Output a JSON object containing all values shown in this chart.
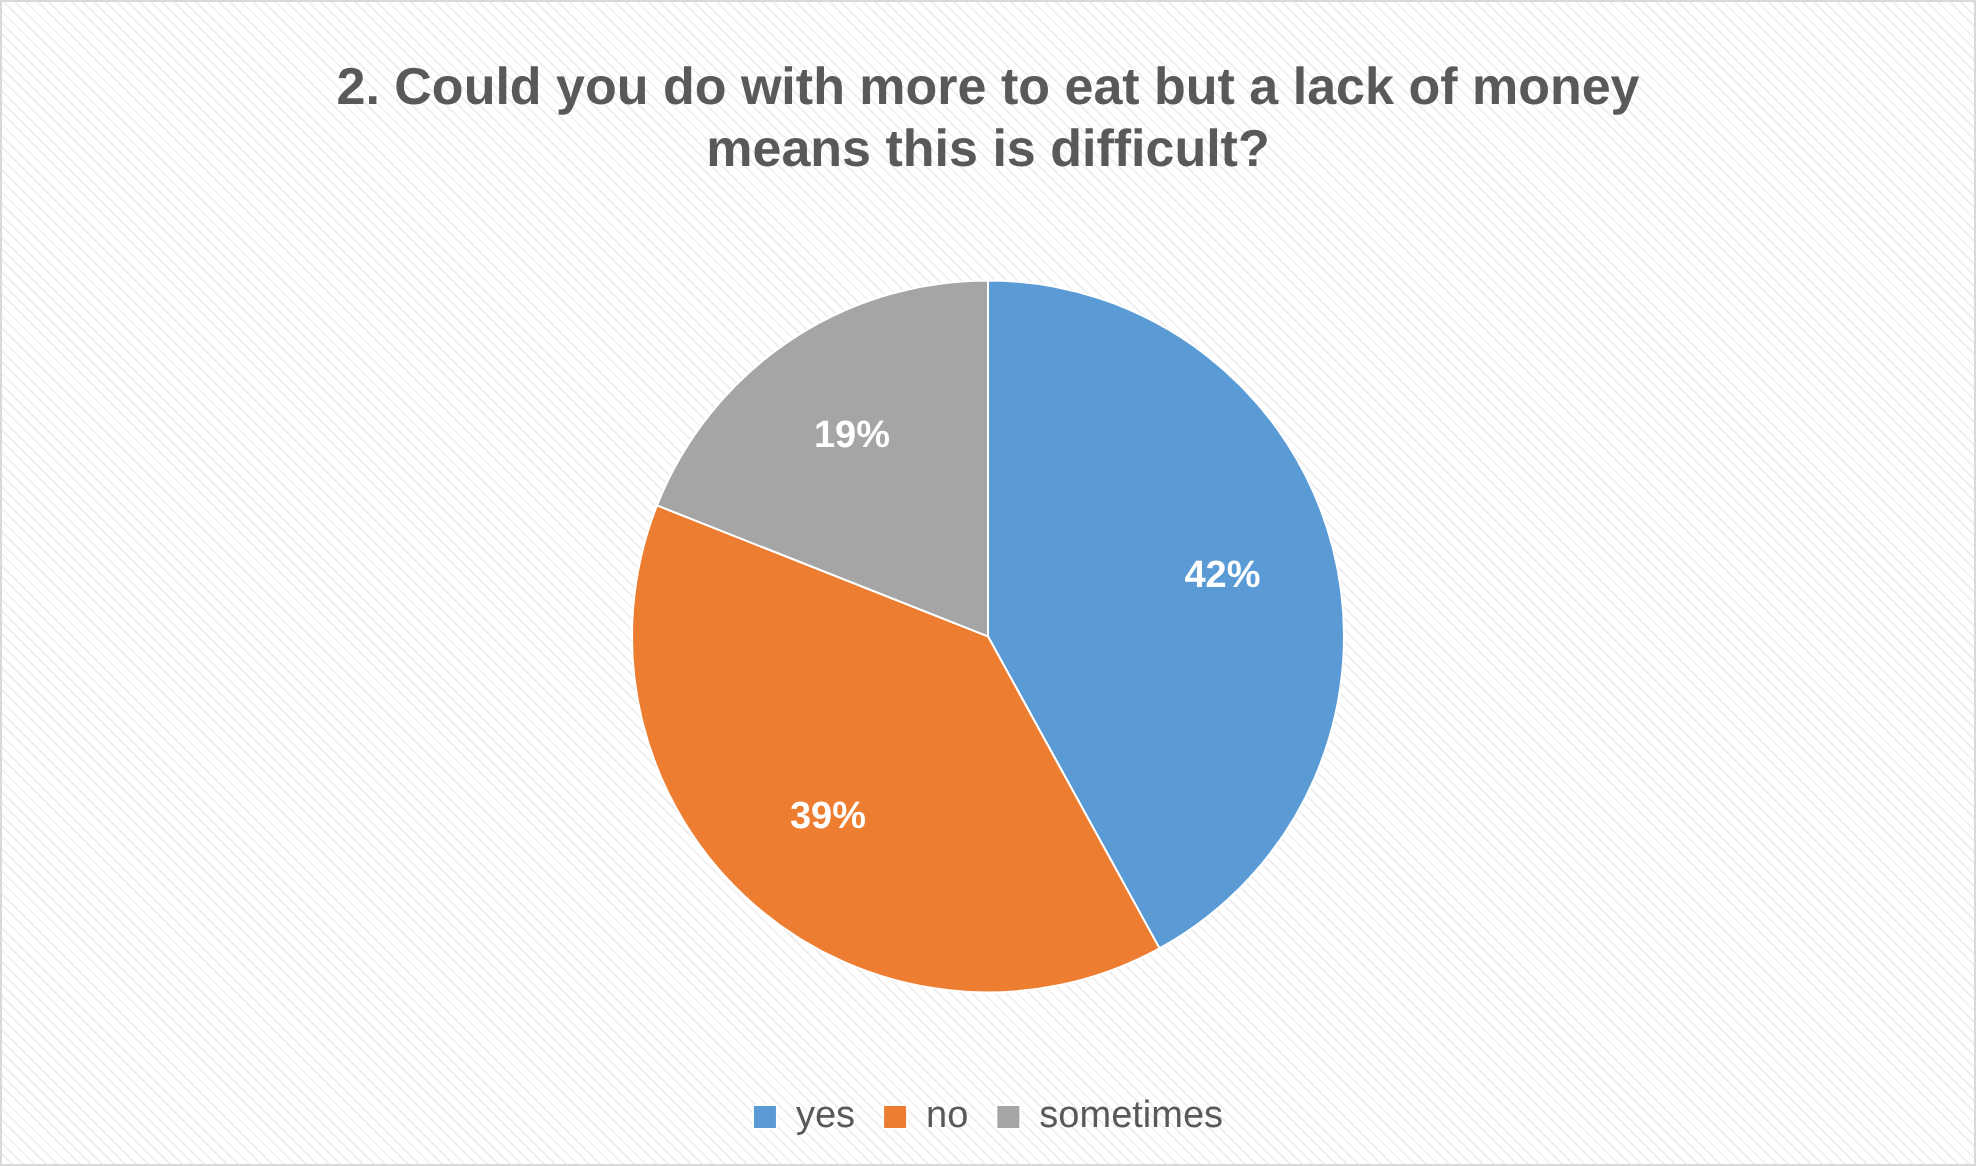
{
  "chart_data": {
    "type": "pie",
    "title": "2. Could you do with more to eat but a lack of money means this is difficult?",
    "categories": [
      "yes",
      "no",
      "sometimes"
    ],
    "values": [
      42,
      39,
      19
    ],
    "colors": [
      "#5b9bd5",
      "#ed7d31",
      "#a5a5a5"
    ],
    "value_labels": [
      "42%",
      "39%",
      "19%"
    ],
    "legend": "bottom"
  }
}
